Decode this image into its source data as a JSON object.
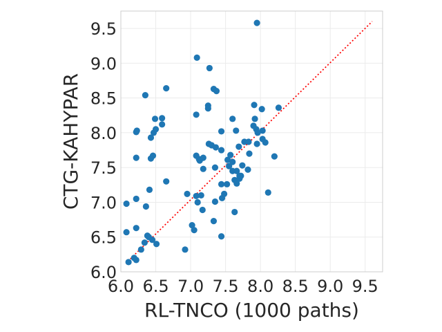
{
  "chart_data": {
    "type": "scatter",
    "title": "",
    "xlabel": "RL-TNCO (1000 paths)",
    "ylabel": "CTG-KAHYPAR",
    "xlim": [
      6.0,
      9.75
    ],
    "ylim": [
      6.0,
      9.75
    ],
    "x_ticks": [
      "6.0",
      "6.5",
      "7.0",
      "7.5",
      "8.0",
      "8.5",
      "9.0",
      "9.5"
    ],
    "y_ticks": [
      "6.0",
      "6.5",
      "7.0",
      "7.5",
      "8.0",
      "8.5",
      "9.0",
      "9.5"
    ],
    "grid": true,
    "legend": "none",
    "colors": {
      "points": "#1f77b4",
      "reference_line": "#ff0000",
      "grid": "#ebebeb",
      "frame": "#cccccc"
    },
    "reference_line": {
      "style": "dotted",
      "x": [
        6.1,
        9.6
      ],
      "y": [
        6.15,
        9.6
      ]
    },
    "series": [
      {
        "points": [
          [
            6.08,
            6.98
          ],
          [
            6.08,
            6.57
          ],
          [
            6.11,
            6.14
          ],
          [
            6.19,
            6.2
          ],
          [
            6.22,
            6.17
          ],
          [
            6.22,
            6.63
          ],
          [
            6.22,
            7.05
          ],
          [
            6.22,
            7.64
          ],
          [
            6.22,
            8.01
          ],
          [
            6.23,
            8.03
          ],
          [
            6.29,
            6.32
          ],
          [
            6.34,
            6.42
          ],
          [
            6.36,
            6.94
          ],
          [
            6.35,
            8.54
          ],
          [
            6.38,
            6.52
          ],
          [
            6.4,
            6.5
          ],
          [
            6.41,
            7.18
          ],
          [
            6.43,
            7.63
          ],
          [
            6.43,
            7.93
          ],
          [
            6.45,
            6.46
          ],
          [
            6.46,
            7.67
          ],
          [
            6.47,
            8.0
          ],
          [
            6.49,
            8.2
          ],
          [
            6.5,
            8.05
          ],
          [
            6.51,
            6.4
          ],
          [
            6.59,
            8.21
          ],
          [
            6.59,
            8.12
          ],
          [
            6.65,
            8.64
          ],
          [
            6.65,
            7.3
          ],
          [
            6.92,
            6.32
          ],
          [
            6.95,
            7.12
          ],
          [
            7.02,
            6.67
          ],
          [
            7.05,
            6.6
          ],
          [
            7.08,
            7.09
          ],
          [
            7.08,
            7.67
          ],
          [
            7.08,
            8.26
          ],
          [
            7.09,
            9.08
          ],
          [
            7.1,
            7.0
          ],
          [
            7.12,
            7.62
          ],
          [
            7.13,
            7.6
          ],
          [
            7.15,
            7.1
          ],
          [
            7.17,
            6.89
          ],
          [
            7.18,
            7.48
          ],
          [
            7.18,
            7.64
          ],
          [
            7.25,
            8.39
          ],
          [
            7.25,
            8.35
          ],
          [
            7.26,
            7.84
          ],
          [
            7.27,
            8.93
          ],
          [
            7.3,
            7.82
          ],
          [
            7.33,
            8.63
          ],
          [
            7.33,
            6.73
          ],
          [
            7.35,
            7.01
          ],
          [
            7.35,
            7.5
          ],
          [
            7.36,
            7.79
          ],
          [
            7.37,
            8.6
          ],
          [
            7.44,
            7.26
          ],
          [
            7.44,
            7.75
          ],
          [
            7.44,
            8.02
          ],
          [
            7.44,
            6.51
          ],
          [
            7.45,
            7.06
          ],
          [
            7.48,
            7.12
          ],
          [
            7.52,
            7.26
          ],
          [
            7.53,
            7.61
          ],
          [
            7.55,
            7.52
          ],
          [
            7.57,
            7.68
          ],
          [
            7.6,
            8.2
          ],
          [
            7.6,
            7.58
          ],
          [
            7.6,
            7.45
          ],
          [
            7.63,
            6.86
          ],
          [
            7.63,
            7.32
          ],
          [
            7.65,
            8.03
          ],
          [
            7.66,
            7.45
          ],
          [
            7.66,
            7.27
          ],
          [
            7.69,
            7.8
          ],
          [
            7.7,
            7.34
          ],
          [
            7.7,
            7.38
          ],
          [
            7.72,
            7.38
          ],
          [
            7.74,
            7.53
          ],
          [
            7.77,
            7.87
          ],
          [
            7.82,
            7.47
          ],
          [
            7.83,
            7.87
          ],
          [
            7.84,
            7.7
          ],
          [
            7.9,
            8.1
          ],
          [
            7.91,
            8.4
          ],
          [
            7.92,
            8.2
          ],
          [
            7.94,
            8.05
          ],
          [
            7.95,
            9.58
          ],
          [
            7.95,
            7.84
          ],
          [
            7.96,
            8.0
          ],
          [
            8.02,
            8.34
          ],
          [
            8.03,
            7.91
          ],
          [
            8.03,
            8.03
          ],
          [
            8.07,
            7.86
          ],
          [
            8.11,
            7.14
          ],
          [
            8.2,
            7.66
          ],
          [
            8.26,
            8.36
          ]
        ]
      }
    ]
  }
}
